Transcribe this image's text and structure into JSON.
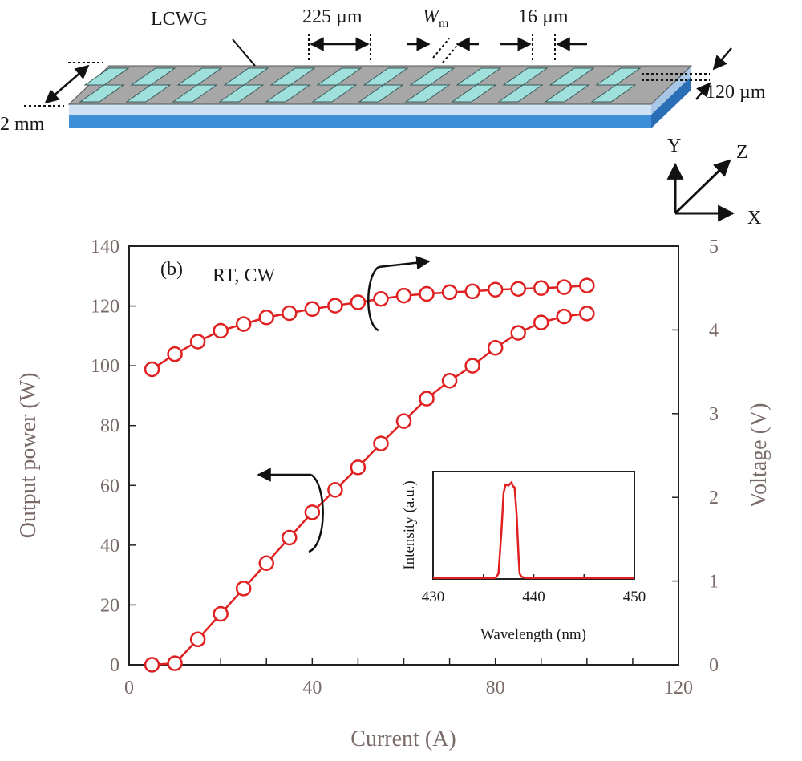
{
  "device": {
    "labels": {
      "lcwg": "LCWG",
      "pitch": "225 µm",
      "wm_main": "W",
      "wm_sub": "m",
      "gap": "16 µm",
      "length": "2 mm",
      "width": "120 µm"
    },
    "axes": {
      "y": "Y",
      "z": "Z",
      "x": "X"
    }
  },
  "chart_data": [
    {
      "type": "scatter",
      "panel_label": "(b)",
      "annotation": "RT, CW",
      "xlabel": "Current (A)",
      "ylabel": "Output power (W)",
      "y2label": "Voltage (V)",
      "xlim": [
        0,
        120
      ],
      "ylim": [
        0,
        140
      ],
      "y2lim": [
        0,
        5
      ],
      "xticks": [
        0,
        40,
        80,
        120
      ],
      "yticks": [
        0,
        20,
        40,
        60,
        80,
        100,
        120,
        140
      ],
      "y2ticks": [
        0,
        1,
        2,
        3,
        4,
        5
      ],
      "marker_color": "#e02020",
      "series": [
        {
          "axis": "left",
          "x": [
            5,
            10,
            15,
            20,
            25,
            30,
            35,
            40,
            45,
            50,
            55,
            60,
            65,
            70,
            75,
            80,
            85,
            90,
            95,
            100
          ],
          "values": [
            0,
            0.5,
            8.5,
            17,
            25.5,
            34,
            42.5,
            51,
            58.5,
            66,
            74,
            81.5,
            89,
            95,
            100,
            106,
            111,
            114.5,
            116.5,
            117.5
          ]
        },
        {
          "axis": "right",
          "x": [
            5,
            10,
            15,
            20,
            25,
            30,
            35,
            40,
            45,
            50,
            55,
            60,
            65,
            70,
            75,
            80,
            85,
            90,
            95,
            100
          ],
          "values": [
            3.53,
            3.71,
            3.86,
            3.99,
            4.07,
            4.15,
            4.2,
            4.25,
            4.29,
            4.33,
            4.37,
            4.41,
            4.43,
            4.45,
            4.46,
            4.48,
            4.49,
            4.5,
            4.51,
            4.53
          ]
        }
      ]
    },
    {
      "type": "line",
      "xlabel": "Wavelength (nm)",
      "ylabel": "Intensity (a.u.)",
      "xlim": [
        430,
        450
      ],
      "ylim": [
        0,
        1
      ],
      "xticks": [
        430,
        440,
        450
      ],
      "line_color": "#e02020",
      "x": [
        430,
        436.2,
        436.5,
        436.8,
        437.0,
        437.2,
        437.5,
        437.7,
        437.8,
        437.9,
        438.1,
        438.3,
        438.5,
        438.6,
        438.8,
        439.2,
        450
      ],
      "values": [
        0.01,
        0.01,
        0.05,
        0.45,
        0.8,
        0.88,
        0.87,
        0.89,
        0.9,
        0.87,
        0.85,
        0.6,
        0.2,
        0.05,
        0.02,
        0.01,
        0.01
      ]
    }
  ]
}
